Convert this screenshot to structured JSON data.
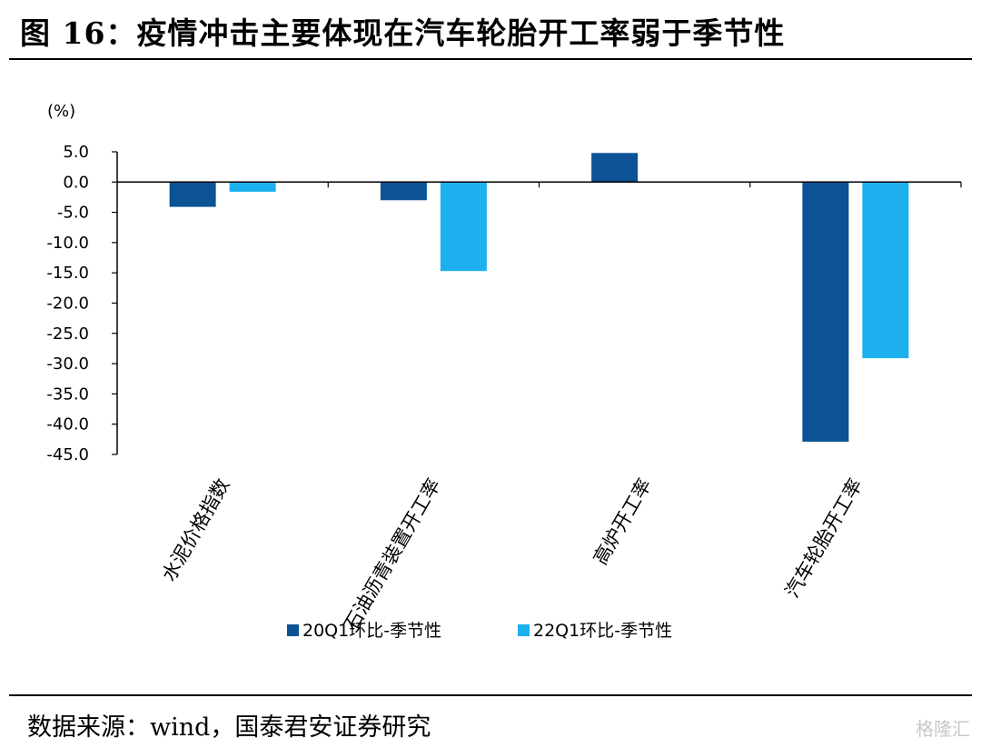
{
  "figure": {
    "title": "图 16：疫情冲击主要体现在汽车轮胎开工率弱于季节性",
    "source": "数据来源：wind，国泰君安证券研究",
    "watermark": "格隆汇"
  },
  "colors": {
    "series_20q1": "#0B5394",
    "series_22q1": "#1DB0EE",
    "axis": "#000000"
  },
  "chart_data": {
    "type": "bar",
    "unit_label": "(%)",
    "categories": [
      "水泥价格指数",
      "石油沥青装置开工率",
      "高炉开工率",
      "汽车轮胎开工率"
    ],
    "series": [
      {
        "name": "20Q1环比-季节性",
        "values": [
          -4.1,
          -3.0,
          4.8,
          -42.9
        ]
      },
      {
        "name": "22Q1环比-季节性",
        "values": [
          -1.6,
          -14.7,
          0.0,
          -29.1
        ]
      }
    ],
    "ylim": [
      -45,
      5
    ],
    "yticks": [
      "5.0",
      "0.0",
      "-5.0",
      "-10.0",
      "-15.0",
      "-20.0",
      "-25.0",
      "-30.0",
      "-35.0",
      "-40.0",
      "-45.0"
    ],
    "grid": false,
    "legend": "bottom-center"
  }
}
